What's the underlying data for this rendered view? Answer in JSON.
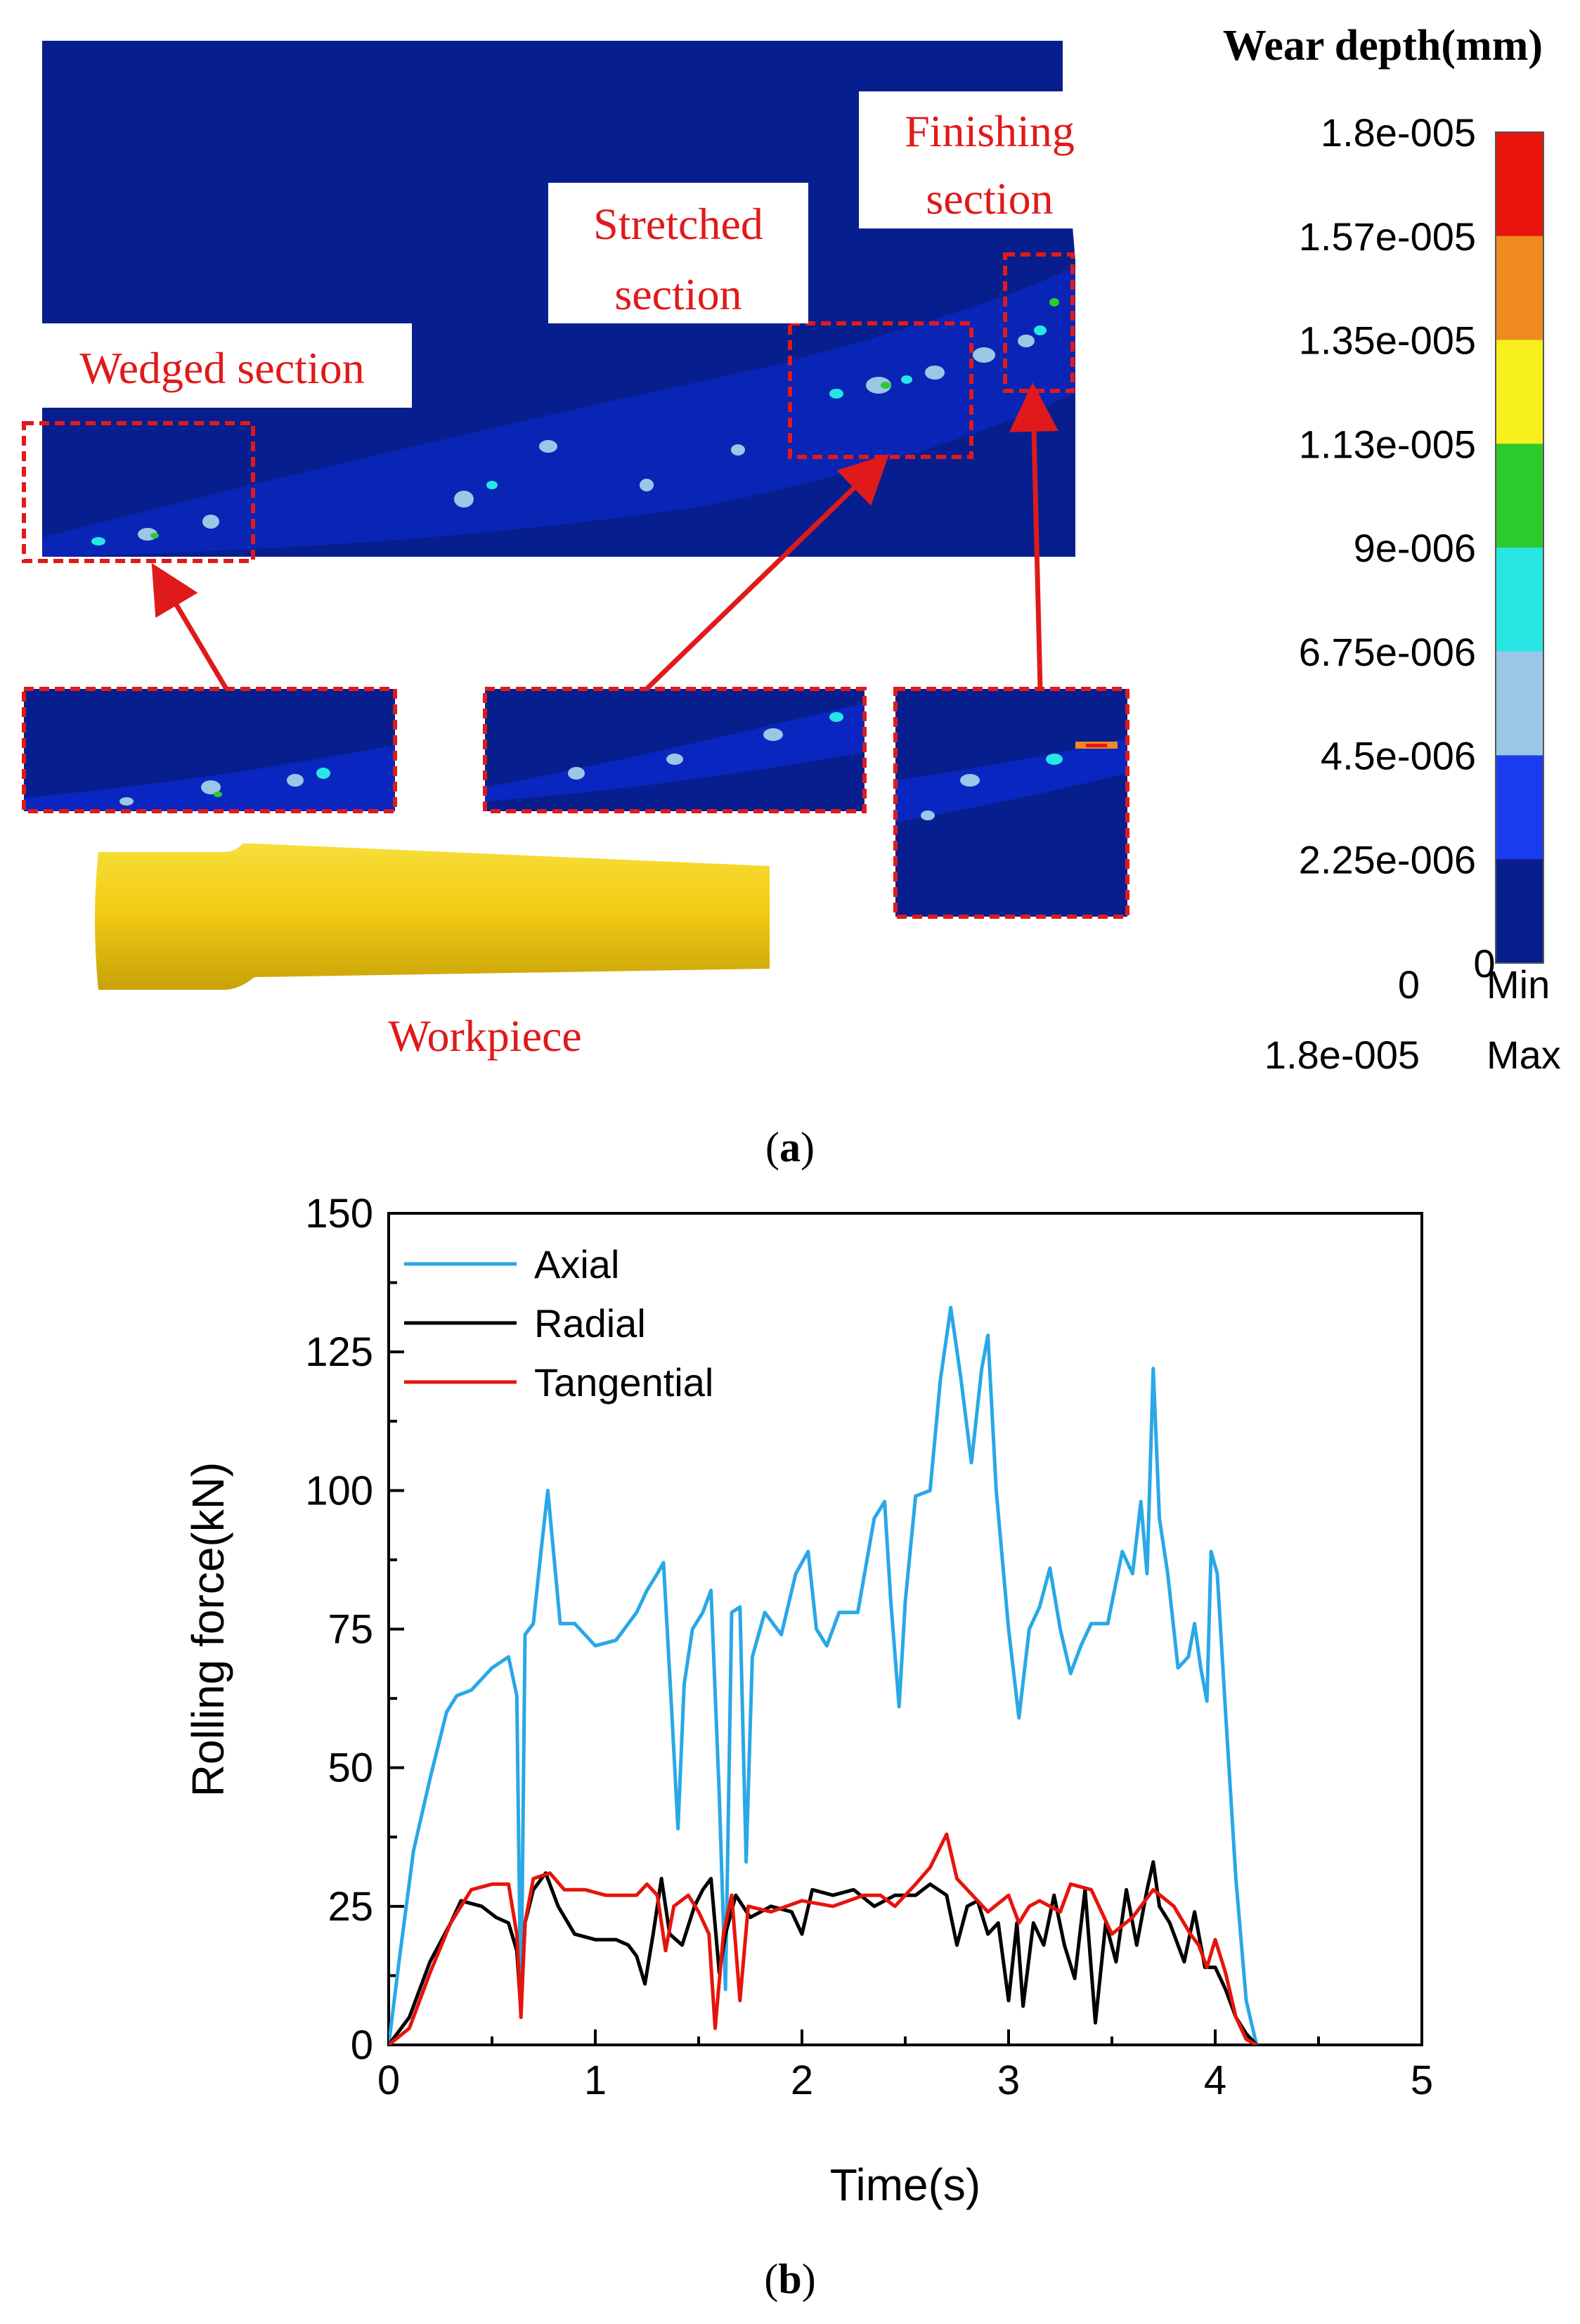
{
  "panel_a": {
    "caption_open": "(",
    "caption_letter": "a",
    "caption_close": ")",
    "section_labels": {
      "wedged": "Wedged section",
      "stretched_1": "Stretched",
      "stretched_2": "section",
      "finishing_1": "Finishing",
      "finishing_2": "section",
      "workpiece": "Workpiece"
    },
    "legend": {
      "title": "Wear depth(mm)",
      "levels": [
        "1.8e-005",
        "1.57e-005",
        "1.35e-005",
        "1.13e-005",
        "9e-006",
        "6.75e-006",
        "4.5e-006",
        "2.25e-006",
        "0"
      ],
      "colors": [
        "#e8140c",
        "#ee8a1e",
        "#f7f01c",
        "#2ccb2c",
        "#27e6e4",
        "#9cc6e6",
        "#1a3cf0",
        "#071f8e"
      ],
      "min_value": "0",
      "min_label": "Min",
      "max_value": "1.8e-005",
      "max_label": "Max"
    },
    "colors": {
      "contour_background": "#071f8e",
      "highlight_box": "#e01a1a",
      "arrow": "#e01a1a",
      "workpiece": "#f0cc10"
    }
  },
  "panel_b": {
    "caption_open": "(",
    "caption_letter": "b",
    "caption_close": ")"
  },
  "chart_data": {
    "type": "line",
    "title": "",
    "xlabel": "Time(s)",
    "ylabel": "Rolling force(kN)",
    "xlim": [
      0,
      5
    ],
    "ylim": [
      0,
      150
    ],
    "xticks": [
      0,
      1,
      2,
      3,
      4,
      5
    ],
    "yticks": [
      0,
      25,
      50,
      75,
      100,
      125,
      150
    ],
    "legend_position": "top-left",
    "series": [
      {
        "name": "Axial",
        "color": "#29a8e6",
        "points": [
          [
            0,
            0
          ],
          [
            0.05,
            15
          ],
          [
            0.12,
            35
          ],
          [
            0.2,
            48
          ],
          [
            0.28,
            60
          ],
          [
            0.33,
            63
          ],
          [
            0.4,
            64
          ],
          [
            0.5,
            68
          ],
          [
            0.58,
            70
          ],
          [
            0.62,
            63
          ],
          [
            0.64,
            5
          ],
          [
            0.66,
            74
          ],
          [
            0.7,
            76
          ],
          [
            0.74,
            90
          ],
          [
            0.77,
            100
          ],
          [
            0.8,
            88
          ],
          [
            0.83,
            76
          ],
          [
            0.9,
            76
          ],
          [
            1.0,
            72
          ],
          [
            1.1,
            73
          ],
          [
            1.2,
            78
          ],
          [
            1.25,
            82
          ],
          [
            1.3,
            85
          ],
          [
            1.33,
            87
          ],
          [
            1.37,
            60
          ],
          [
            1.4,
            39
          ],
          [
            1.43,
            65
          ],
          [
            1.47,
            75
          ],
          [
            1.52,
            78
          ],
          [
            1.56,
            82
          ],
          [
            1.6,
            45
          ],
          [
            1.63,
            10
          ],
          [
            1.66,
            78
          ],
          [
            1.7,
            79
          ],
          [
            1.73,
            33
          ],
          [
            1.76,
            70
          ],
          [
            1.82,
            78
          ],
          [
            1.9,
            74
          ],
          [
            1.97,
            85
          ],
          [
            2.03,
            89
          ],
          [
            2.07,
            75
          ],
          [
            2.12,
            72
          ],
          [
            2.18,
            78
          ],
          [
            2.27,
            78
          ],
          [
            2.35,
            95
          ],
          [
            2.4,
            98
          ],
          [
            2.43,
            80
          ],
          [
            2.47,
            61
          ],
          [
            2.5,
            80
          ],
          [
            2.55,
            99
          ],
          [
            2.62,
            100
          ],
          [
            2.67,
            120
          ],
          [
            2.72,
            133
          ],
          [
            2.77,
            120
          ],
          [
            2.82,
            105
          ],
          [
            2.87,
            122
          ],
          [
            2.9,
            128
          ],
          [
            2.94,
            100
          ],
          [
            3.0,
            75
          ],
          [
            3.05,
            59
          ],
          [
            3.1,
            75
          ],
          [
            3.15,
            79
          ],
          [
            3.2,
            86
          ],
          [
            3.25,
            75
          ],
          [
            3.3,
            67
          ],
          [
            3.35,
            72
          ],
          [
            3.4,
            76
          ],
          [
            3.48,
            76
          ],
          [
            3.55,
            89
          ],
          [
            3.6,
            85
          ],
          [
            3.64,
            98
          ],
          [
            3.67,
            85
          ],
          [
            3.7,
            122
          ],
          [
            3.73,
            95
          ],
          [
            3.77,
            85
          ],
          [
            3.82,
            68
          ],
          [
            3.87,
            70
          ],
          [
            3.9,
            76
          ],
          [
            3.93,
            68
          ],
          [
            3.96,
            62
          ],
          [
            3.98,
            89
          ],
          [
            4.01,
            85
          ],
          [
            4.05,
            60
          ],
          [
            4.1,
            30
          ],
          [
            4.15,
            8
          ],
          [
            4.2,
            0
          ]
        ]
      },
      {
        "name": "Radial",
        "color": "#000000",
        "points": [
          [
            0,
            0
          ],
          [
            0.1,
            5
          ],
          [
            0.2,
            15
          ],
          [
            0.3,
            22
          ],
          [
            0.35,
            26
          ],
          [
            0.45,
            25
          ],
          [
            0.52,
            23
          ],
          [
            0.58,
            22
          ],
          [
            0.62,
            17
          ],
          [
            0.64,
            6
          ],
          [
            0.66,
            22
          ],
          [
            0.7,
            28
          ],
          [
            0.76,
            31
          ],
          [
            0.82,
            25
          ],
          [
            0.9,
            20
          ],
          [
            1.0,
            19
          ],
          [
            1.1,
            19
          ],
          [
            1.16,
            18
          ],
          [
            1.2,
            16
          ],
          [
            1.24,
            11
          ],
          [
            1.28,
            20
          ],
          [
            1.32,
            30
          ],
          [
            1.36,
            20
          ],
          [
            1.42,
            18
          ],
          [
            1.48,
            25
          ],
          [
            1.52,
            28
          ],
          [
            1.56,
            30
          ],
          [
            1.6,
            13
          ],
          [
            1.63,
            20
          ],
          [
            1.68,
            27
          ],
          [
            1.75,
            23
          ],
          [
            1.85,
            25
          ],
          [
            1.95,
            24
          ],
          [
            2.0,
            20
          ],
          [
            2.05,
            28
          ],
          [
            2.15,
            27
          ],
          [
            2.25,
            28
          ],
          [
            2.35,
            25
          ],
          [
            2.45,
            27
          ],
          [
            2.55,
            27
          ],
          [
            2.62,
            29
          ],
          [
            2.7,
            27
          ],
          [
            2.75,
            18
          ],
          [
            2.8,
            25
          ],
          [
            2.85,
            26
          ],
          [
            2.9,
            20
          ],
          [
            2.95,
            22
          ],
          [
            3.0,
            8
          ],
          [
            3.04,
            22
          ],
          [
            3.07,
            7
          ],
          [
            3.12,
            22
          ],
          [
            3.17,
            18
          ],
          [
            3.22,
            27
          ],
          [
            3.27,
            18
          ],
          [
            3.32,
            12
          ],
          [
            3.37,
            28
          ],
          [
            3.42,
            4
          ],
          [
            3.47,
            22
          ],
          [
            3.52,
            15
          ],
          [
            3.57,
            28
          ],
          [
            3.62,
            18
          ],
          [
            3.67,
            28
          ],
          [
            3.7,
            33
          ],
          [
            3.73,
            25
          ],
          [
            3.78,
            22
          ],
          [
            3.85,
            15
          ],
          [
            3.9,
            24
          ],
          [
            3.95,
            14
          ],
          [
            4.0,
            14
          ],
          [
            4.05,
            10
          ],
          [
            4.1,
            5
          ],
          [
            4.15,
            2
          ],
          [
            4.2,
            0
          ]
        ]
      },
      {
        "name": "Tangential",
        "color": "#e6140c",
        "points": [
          [
            0,
            0
          ],
          [
            0.1,
            3
          ],
          [
            0.2,
            13
          ],
          [
            0.3,
            22
          ],
          [
            0.35,
            25
          ],
          [
            0.4,
            28
          ],
          [
            0.5,
            29
          ],
          [
            0.58,
            29
          ],
          [
            0.62,
            20
          ],
          [
            0.64,
            5
          ],
          [
            0.66,
            22
          ],
          [
            0.7,
            30
          ],
          [
            0.78,
            31
          ],
          [
            0.85,
            28
          ],
          [
            0.95,
            28
          ],
          [
            1.05,
            27
          ],
          [
            1.2,
            27
          ],
          [
            1.25,
            29
          ],
          [
            1.3,
            27
          ],
          [
            1.34,
            17
          ],
          [
            1.38,
            25
          ],
          [
            1.45,
            27
          ],
          [
            1.5,
            24
          ],
          [
            1.55,
            20
          ],
          [
            1.58,
            3
          ],
          [
            1.62,
            20
          ],
          [
            1.66,
            27
          ],
          [
            1.7,
            8
          ],
          [
            1.74,
            25
          ],
          [
            1.85,
            24
          ],
          [
            2.0,
            26
          ],
          [
            2.15,
            25
          ],
          [
            2.3,
            27
          ],
          [
            2.38,
            27
          ],
          [
            2.45,
            25
          ],
          [
            2.55,
            29
          ],
          [
            2.62,
            32
          ],
          [
            2.7,
            38
          ],
          [
            2.75,
            30
          ],
          [
            2.8,
            28
          ],
          [
            2.9,
            24
          ],
          [
            3.0,
            27
          ],
          [
            3.05,
            22
          ],
          [
            3.1,
            25
          ],
          [
            3.15,
            26
          ],
          [
            3.25,
            24
          ],
          [
            3.3,
            29
          ],
          [
            3.4,
            28
          ],
          [
            3.5,
            20
          ],
          [
            3.6,
            23
          ],
          [
            3.7,
            28
          ],
          [
            3.8,
            25
          ],
          [
            3.88,
            20
          ],
          [
            3.92,
            18
          ],
          [
            3.96,
            14
          ],
          [
            4.0,
            19
          ],
          [
            4.05,
            13
          ],
          [
            4.1,
            5
          ],
          [
            4.15,
            1
          ],
          [
            4.2,
            0
          ]
        ]
      }
    ]
  }
}
